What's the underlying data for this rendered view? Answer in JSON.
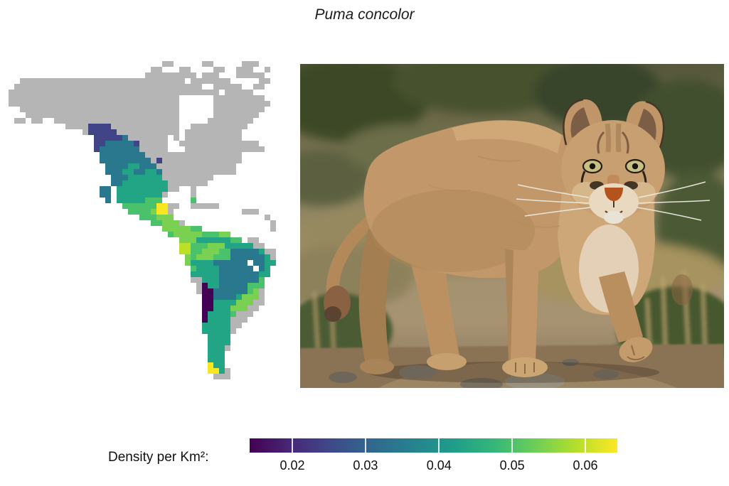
{
  "title": "Puma concolor",
  "map": {
    "description": "Pixelated density raster map of the Americas; gray = land outside modeled density, viridis colors = density per km2",
    "palette": {
      "g": "#b5b5b5",
      "1": "#440154",
      "2": "#414487",
      "3": "#2a788e",
      "4": "#21a585",
      "5": "#4ac16b",
      "6": "#7ad151",
      "7": "#bddf26",
      "8": "#f8e621"
    },
    "grid": [
      "...........................gg.....gg.....ggg....",
      ".........................gg...gg....gg..ggg..g..",
      "........................ggggggggg.ggg...ggggg...",
      "..ggggggggggggggggggggggggggggg.ggggggg.....gg..",
      ".ggggggggggggggggggggggggggggggggg..ggggg..gg...",
      "ggggggggggggggggggggggggggggggggggggg.ggggg.....",
      "gggggggggggggggggggggggggggggg......ggggggggg...",
      "gggggggggggggggggggggggggggggg......gggggggggg..",
      "..gggggggggggggggggggggggggggg......ggggggggg...",
      "...ggggggggggggggggggggggggggg......gggggggg....",
      ".gg.gg..gggggggggggggggggggggg.....gggggggg.....",
      "..........gggg2222gggggggggggg..gggggggggg......",
      ".............g22222ggggggggggg.gggggggggg.......",
      "...............222223ggggggg.g.gggggggggg.......",
      "...............22333332ggggg..gggggggggggggg....",
      "...............23333333ggggg...gggggggggggggg...",
      "................33333333ggggggggggggggggg.......",
      "................333333333g2gggggggggggggg.......",
      ".................333344333gggggggggggggg........",
      ".................3334433443ggggggggggggg........",
      "..................333444444ggggggggg............",
      "..................3344444444ggggggg.............",
      "................33.444444444gg..g...............",
      "................33.44444444g....g...............",
      ".................3.44444555.....5...............",
      "....................55555588gg..ggggg...........",
      ".....................5555688g............ggg....",
      ".......................555666................g..",
      ".........................55666g...............g.",
      "...........................6666655............g.",
      "............................56666655566.........",
      "..............................66644444455.gg....",
      "..............................7755566644444gg...",
      "..............................775566655333334gg.",
      "...............................656665553333334g.",
      "...............................64444333333.3344.",
      "................................54444333333.34..",
      "................................44444333333344..",
      "................................gg44433333335...",
      ".................................g14433333555...",
      ".................................g1133333356g...",
      "..................................1133334666g...",
      "..................................114444666gg...",
      "..................................11444666gg....",
      "..................................144445ggg.....",
      "..................................14444ggg......",
      "..................................44444gg.......",
      "..................................44444g........",
      "...................................4444.........",
      "...................................4444.........",
      "...................................444g.........",
      "...................................444..........",
      "...................................444..........",
      "...................................844..........",
      "...................................884g.........",
      "....................................ggg.........",
      "................................................"
    ]
  },
  "photo": {
    "subject": "Puma (cougar) walking toward viewer through arid shrub-steppe with dry grass and rocky ground"
  },
  "legend": {
    "label": "Density per Km²:",
    "gradient": [
      "#440154",
      "#482878",
      "#3e4a89",
      "#31688e",
      "#26828e",
      "#1f9e89",
      "#35b779",
      "#6ece58",
      "#b5de2b",
      "#fde725"
    ],
    "ticks": [
      {
        "value": "0.02",
        "frac": 0.116
      },
      {
        "value": "0.03",
        "frac": 0.315
      },
      {
        "value": "0.04",
        "frac": 0.515
      },
      {
        "value": "0.05",
        "frac": 0.714
      },
      {
        "value": "0.06",
        "frac": 0.913
      }
    ]
  }
}
